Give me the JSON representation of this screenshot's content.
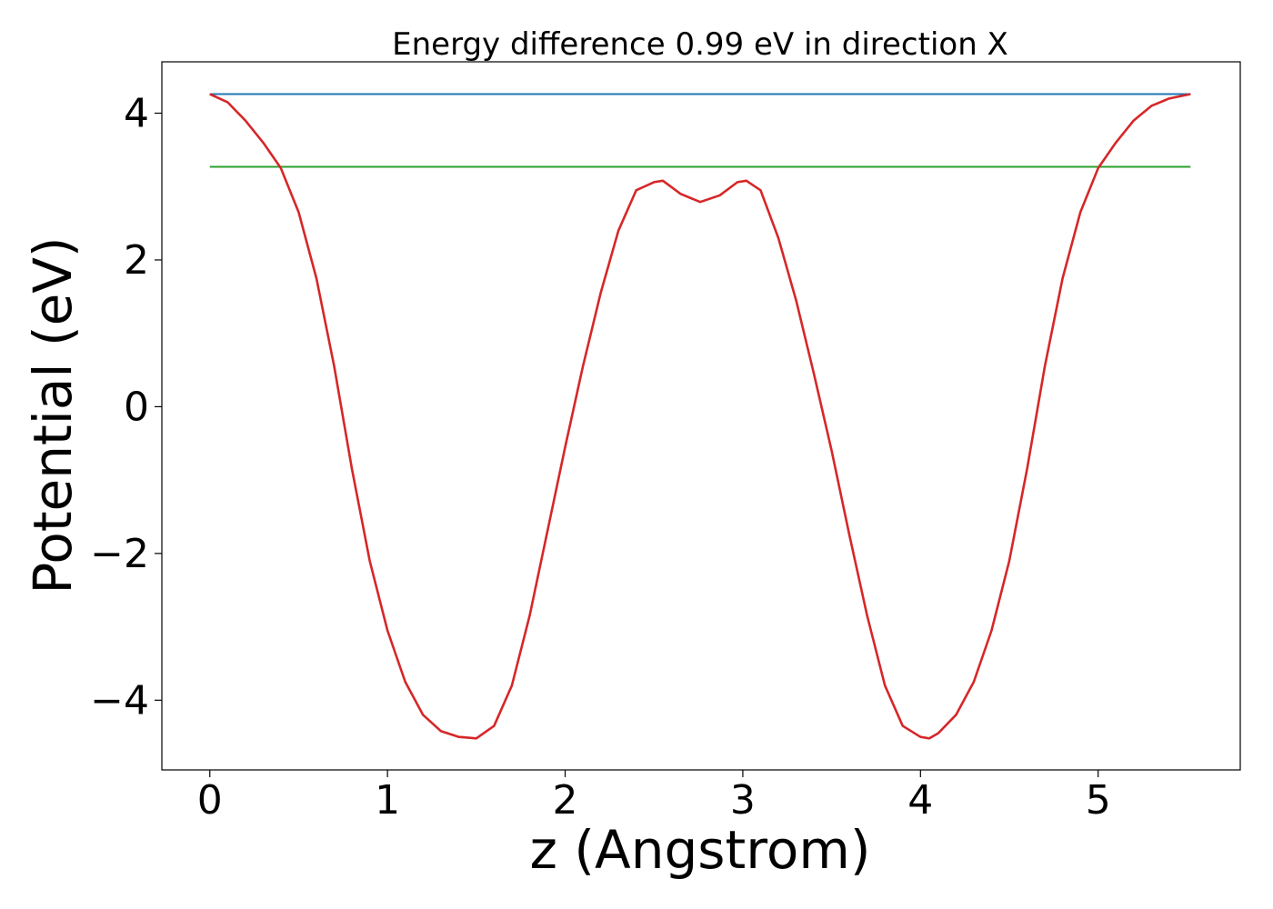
{
  "chart_data": {
    "type": "line",
    "title": "Energy difference 0.99 eV in direction X",
    "xlabel": "z (Angstrom)",
    "ylabel": "Potential (eV)",
    "xlim": [
      -0.27,
      5.8
    ],
    "ylim": [
      -4.95,
      4.7
    ],
    "x_ticks": [
      0,
      1,
      2,
      3,
      4,
      5
    ],
    "x_tick_labels": [
      "0",
      "1",
      "2",
      "3",
      "4",
      "5"
    ],
    "y_ticks": [
      4,
      2,
      0,
      -2,
      -4
    ],
    "y_tick_labels": [
      "4",
      "2",
      "0",
      "−2",
      "−4"
    ],
    "grid": false,
    "series": [
      {
        "color": "#1f77b4",
        "x": [
          0,
          5.52
        ],
        "y": [
          4.26,
          4.26
        ]
      },
      {
        "color": "#2ca02c",
        "x": [
          0,
          5.52
        ],
        "y": [
          3.27,
          3.27
        ]
      },
      {
        "color": "#d62728",
        "x": [
          0,
          0.1,
          0.2,
          0.3,
          0.4,
          0.5,
          0.6,
          0.7,
          0.8,
          0.9,
          1.0,
          1.1,
          1.2,
          1.3,
          1.4,
          1.5,
          1.6,
          1.7,
          1.8,
          1.9,
          2.0,
          2.1,
          2.2,
          2.3,
          2.4,
          2.5,
          2.55,
          2.65,
          2.76,
          2.87,
          2.97,
          3.02,
          3.1,
          3.2,
          3.3,
          3.4,
          3.5,
          3.6,
          3.7,
          3.8,
          3.9,
          4.0,
          4.05,
          4.1,
          4.2,
          4.3,
          4.4,
          4.5,
          4.6,
          4.7,
          4.8,
          4.9,
          5.0,
          5.1,
          5.2,
          5.3,
          5.4,
          5.52
        ],
        "y": [
          4.26,
          4.15,
          3.9,
          3.6,
          3.25,
          2.65,
          1.75,
          0.55,
          -0.85,
          -2.1,
          -3.05,
          -3.75,
          -4.2,
          -4.42,
          -4.5,
          -4.52,
          -4.35,
          -3.8,
          -2.85,
          -1.7,
          -0.55,
          0.55,
          1.55,
          2.4,
          2.95,
          3.06,
          3.08,
          2.9,
          2.79,
          2.88,
          3.06,
          3.08,
          2.95,
          2.3,
          1.45,
          0.45,
          -0.6,
          -1.75,
          -2.85,
          -3.8,
          -4.35,
          -4.5,
          -4.52,
          -4.45,
          -4.2,
          -3.75,
          -3.05,
          -2.1,
          -0.85,
          0.55,
          1.75,
          2.65,
          3.25,
          3.6,
          3.9,
          4.1,
          4.2,
          4.26
        ]
      }
    ]
  }
}
